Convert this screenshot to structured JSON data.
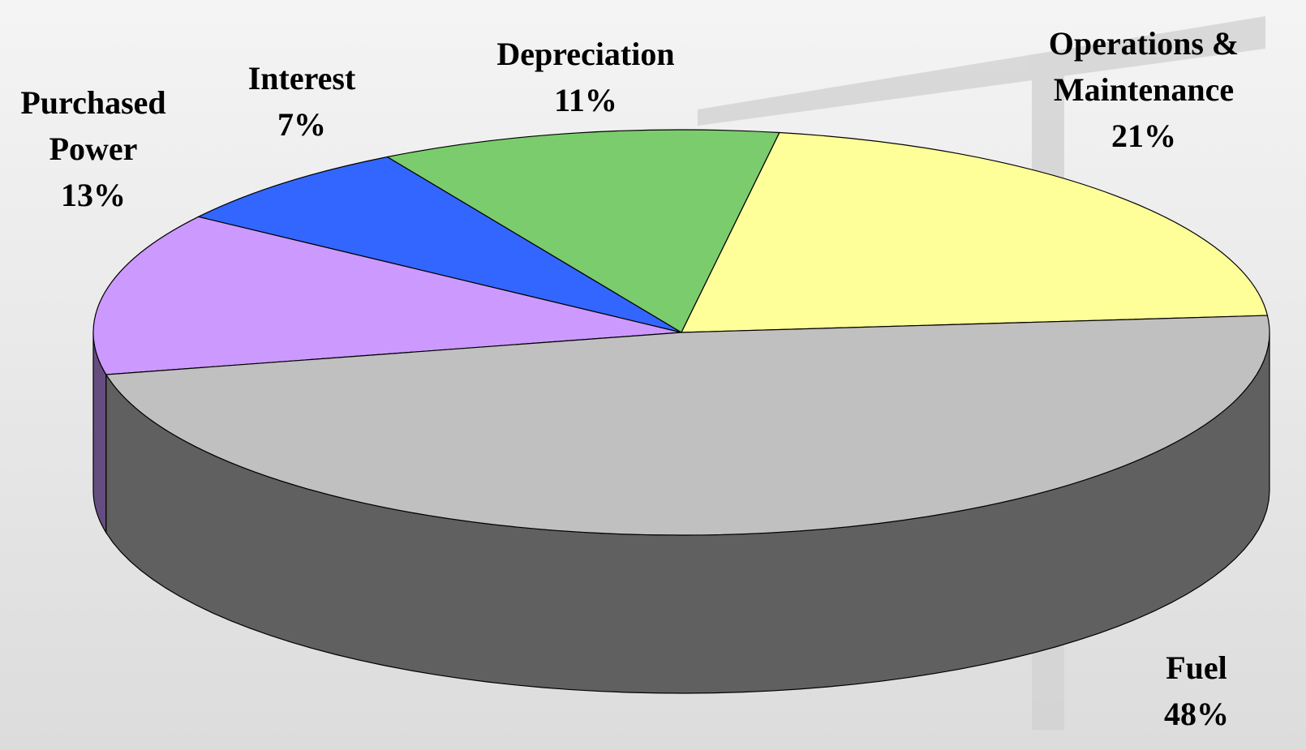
{
  "chart_data": {
    "type": "pie",
    "categories": [
      "Purchased Power",
      "Interest",
      "Depreciation",
      "Operations & Maintenance",
      "Fuel"
    ],
    "values": [
      13,
      7,
      11,
      21,
      48
    ],
    "value_labels": [
      "13%",
      "7%",
      "11%",
      "21%",
      "48%"
    ],
    "colors": [
      "#cc99ff",
      "#3366ff",
      "#7acc6c",
      "#ffff99",
      "#c0c0c0"
    ]
  }
}
